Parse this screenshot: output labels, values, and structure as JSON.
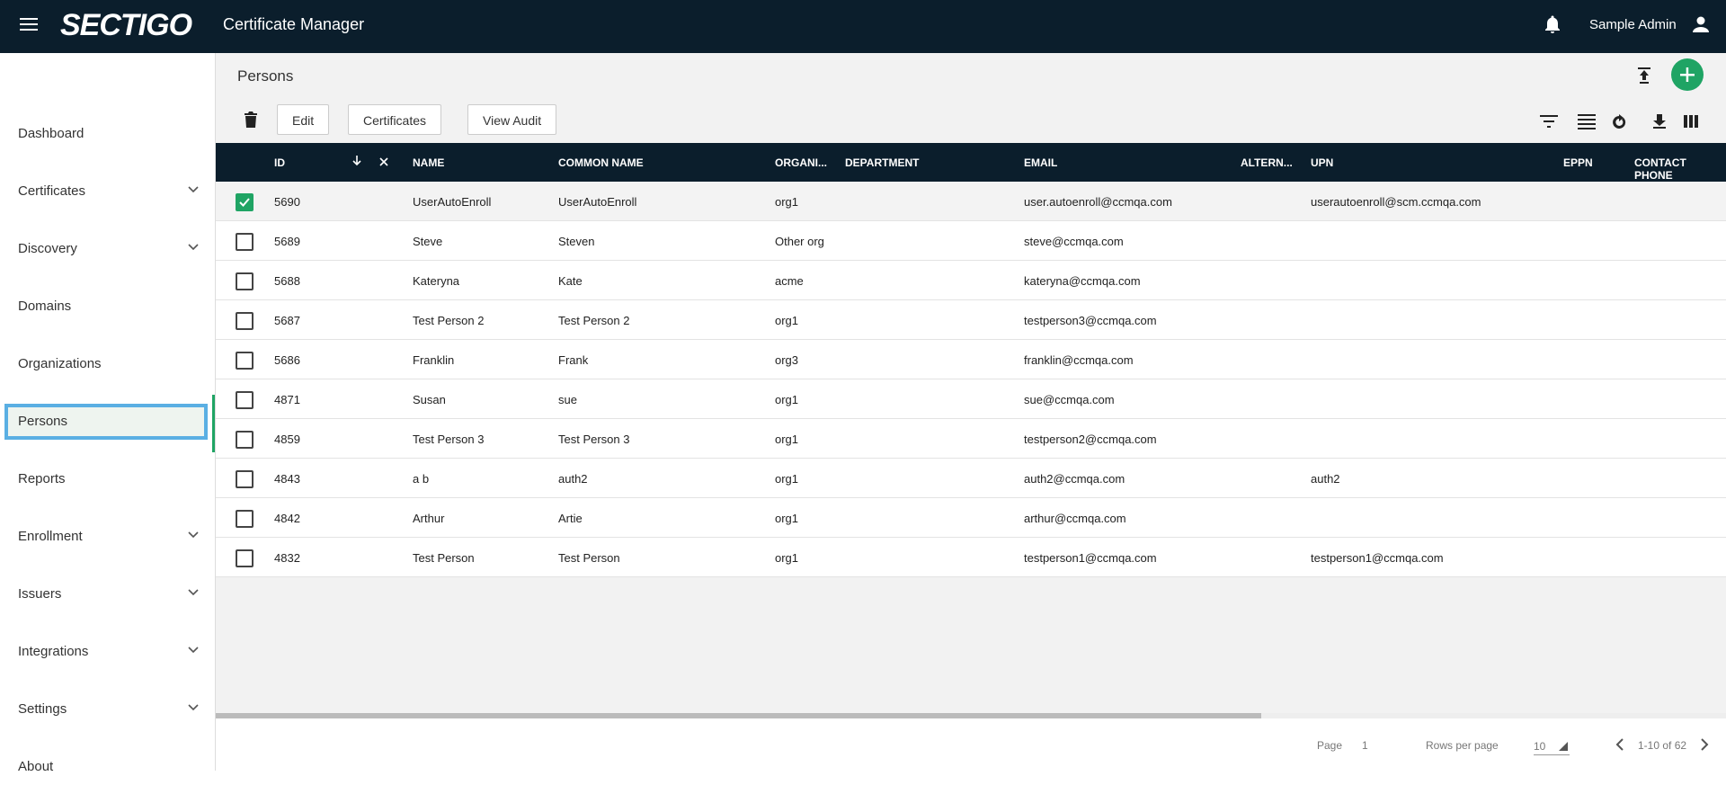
{
  "header": {
    "logo": "SECTIGO",
    "app_title": "Certificate Manager",
    "user": "Sample Admin"
  },
  "nav": [
    {
      "label": "Dashboard",
      "expandable": false
    },
    {
      "label": "Certificates",
      "expandable": true
    },
    {
      "label": "Discovery",
      "expandable": true
    },
    {
      "label": "Domains",
      "expandable": false
    },
    {
      "label": "Organizations",
      "expandable": false
    },
    {
      "label": "Persons",
      "expandable": false,
      "active": true
    },
    {
      "label": "Reports",
      "expandable": false
    },
    {
      "label": "Enrollment",
      "expandable": true
    },
    {
      "label": "Issuers",
      "expandable": true
    },
    {
      "label": "Integrations",
      "expandable": true
    },
    {
      "label": "Settings",
      "expandable": true
    },
    {
      "label": "About",
      "expandable": false
    }
  ],
  "page_title": "Persons",
  "toolbar": {
    "buttons": [
      "Edit",
      "Certificates",
      "View Audit"
    ]
  },
  "table": {
    "columns": [
      "ID",
      "NAME",
      "COMMON NAME",
      "ORGANI...",
      "DEPARTMENT",
      "EMAIL",
      "ALTERN...",
      "UPN",
      "EPPN",
      "CONTACT PHONE"
    ],
    "rows": [
      {
        "checked": true,
        "cells": [
          "5690",
          "UserAutoEnroll",
          "UserAutoEnroll",
          "org1",
          "",
          "user.autoenroll@ccmqa.com",
          "",
          "userautoenroll@scm.ccmqa.com",
          "",
          ""
        ]
      },
      {
        "checked": false,
        "cells": [
          "5689",
          "Steve",
          "Steven",
          "Other org",
          "",
          "steve@ccmqa.com",
          "",
          "",
          "",
          ""
        ]
      },
      {
        "checked": false,
        "cells": [
          "5688",
          "Kateryna",
          "Kate",
          "acme",
          "",
          "kateryna@ccmqa.com",
          "",
          "",
          "",
          ""
        ]
      },
      {
        "checked": false,
        "cells": [
          "5687",
          "Test Person 2",
          "Test Person 2",
          "org1",
          "",
          "testperson3@ccmqa.com",
          "",
          "",
          "",
          ""
        ]
      },
      {
        "checked": false,
        "cells": [
          "5686",
          "Franklin",
          "Frank",
          "org3",
          "",
          "franklin@ccmqa.com",
          "",
          "",
          "",
          ""
        ]
      },
      {
        "checked": false,
        "cells": [
          "4871",
          "Susan",
          "sue",
          "org1",
          "",
          "sue@ccmqa.com",
          "",
          "",
          "",
          ""
        ]
      },
      {
        "checked": false,
        "cells": [
          "4859",
          "Test Person 3",
          "Test Person 3",
          "org1",
          "",
          "testperson2@ccmqa.com",
          "",
          "",
          "",
          ""
        ]
      },
      {
        "checked": false,
        "cells": [
          "4843",
          "a b",
          "auth2",
          "org1",
          "",
          "auth2@ccmqa.com",
          "",
          "auth2",
          "",
          ""
        ]
      },
      {
        "checked": false,
        "cells": [
          "4842",
          "Arthur",
          "Artie",
          "org1",
          "",
          "arthur@ccmqa.com",
          "",
          "",
          "",
          ""
        ]
      },
      {
        "checked": false,
        "cells": [
          "4832",
          "Test Person",
          "Test Person",
          "org1",
          "",
          "testperson1@ccmqa.com",
          "",
          "testperson1@ccmqa.com",
          "",
          ""
        ]
      }
    ]
  },
  "footer": {
    "page_label": "Page",
    "page": "1",
    "rows_label": "Rows per page",
    "rows_per_page": "10",
    "range": "1-10 of 62"
  }
}
